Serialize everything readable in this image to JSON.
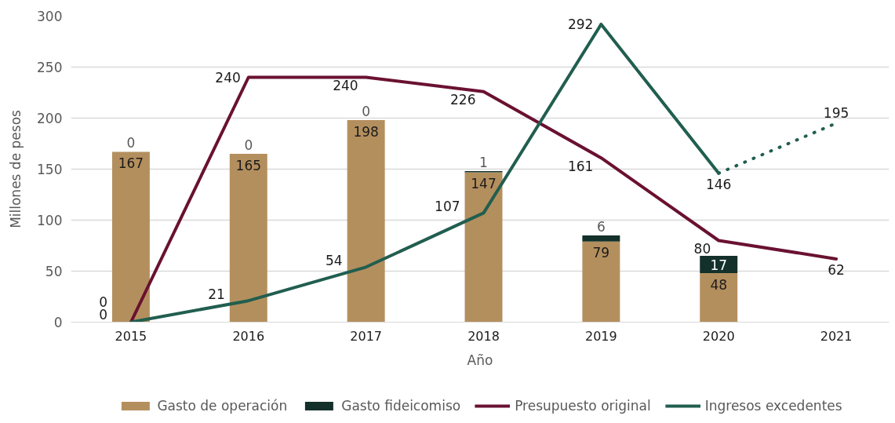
{
  "chart_data": {
    "type": "bar",
    "stacked": true,
    "xlabel": "Año",
    "ylabel": "Millones de pesos",
    "categories": [
      "2015",
      "2016",
      "2017",
      "2018",
      "2019",
      "2020",
      "2021"
    ],
    "ylim": [
      0,
      300
    ],
    "yticks": [
      0,
      50,
      100,
      150,
      200,
      250,
      300
    ],
    "grid": "y",
    "legend": "bottom",
    "series": [
      {
        "name": "Gasto de operación",
        "color": "#b48f5e",
        "values": [
          167,
          165,
          198,
          147,
          79,
          48,
          null
        ],
        "value_labels": [
          "167",
          "165",
          "198",
          "147",
          "79",
          "48",
          null
        ]
      },
      {
        "name": "Gasto fideicomiso",
        "color": "#13302a",
        "values": [
          0,
          0,
          0,
          1,
          6,
          17,
          null
        ],
        "value_labels": [
          "0",
          "0",
          "0",
          "1",
          "6",
          "17",
          null
        ]
      },
      {
        "name": "Presupuesto original",
        "type": "line",
        "color": "#6a1131",
        "line_style": "solid",
        "values": [
          0,
          240,
          240,
          226,
          161,
          80,
          62
        ],
        "value_labels": [
          "0",
          "240",
          "240",
          "226",
          "161",
          "80",
          "62"
        ]
      },
      {
        "name": "Ingresos excedentes",
        "type": "line",
        "color": "#215e4f",
        "line_style": "solid",
        "values": [
          0,
          21,
          54,
          107,
          292,
          146,
          null
        ],
        "value_labels": [
          "0",
          "21",
          "54",
          "107",
          "292",
          "146",
          null
        ]
      },
      {
        "type": "line",
        "color": "#215e4f",
        "line_style": "dotted",
        "values": [
          null,
          null,
          null,
          null,
          null,
          146,
          195
        ],
        "value_labels": [
          null,
          null,
          null,
          null,
          null,
          null,
          "195"
        ]
      }
    ]
  }
}
